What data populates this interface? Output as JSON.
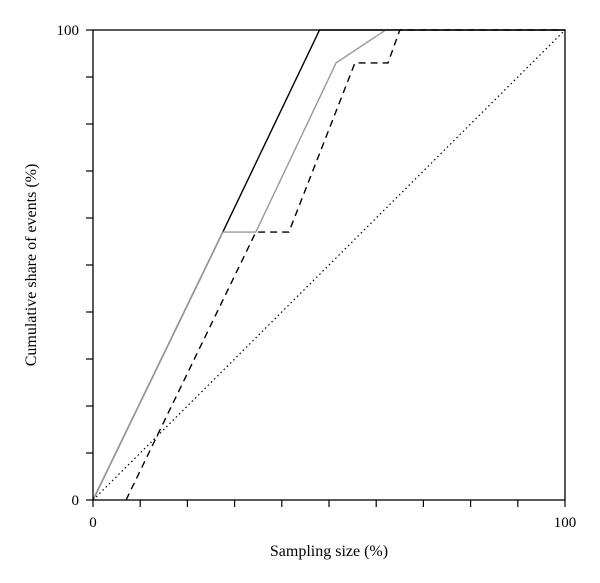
{
  "chart_data": {
    "type": "line",
    "xlabel": "Sampling size (%)",
    "ylabel": "Cumulative share of events (%)",
    "xlim": [
      0,
      100
    ],
    "ylim": [
      0,
      100
    ],
    "x_tick_labels": [
      {
        "value": 0,
        "label": "0"
      },
      {
        "value": 100,
        "label": "100"
      }
    ],
    "y_tick_labels": [
      {
        "value": 0,
        "label": "0"
      },
      {
        "value": 100,
        "label": "100"
      }
    ],
    "minor_ticks": [
      10,
      20,
      30,
      40,
      50,
      60,
      70,
      80,
      90
    ],
    "grid": false,
    "legend": "none",
    "series": [
      {
        "style": "solid",
        "color": "#000000",
        "x": [
          0,
          27.5,
          48,
          100
        ],
        "y": [
          0,
          57,
          100,
          100
        ]
      },
      {
        "style": "solid",
        "color": "#999999",
        "x": [
          0,
          27.5,
          34.5,
          51.5,
          62,
          100
        ],
        "y": [
          0,
          57,
          57,
          93,
          100,
          100
        ]
      },
      {
        "style": "dashed",
        "color": "#000000",
        "x": [
          7,
          34.5,
          41.5,
          55.5,
          62.5,
          65,
          100
        ],
        "y": [
          0,
          57,
          57,
          93,
          93,
          100,
          100
        ]
      },
      {
        "style": "dotted",
        "color": "#000000",
        "x": [
          0,
          100
        ],
        "y": [
          0,
          100
        ]
      }
    ]
  }
}
